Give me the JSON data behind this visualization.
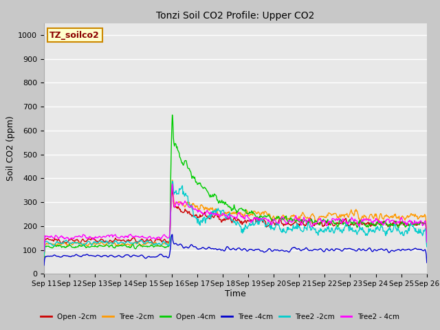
{
  "title": "Tonzi Soil CO2 Profile: Upper CO2",
  "xlabel": "Time",
  "ylabel": "Soil CO2 (ppm)",
  "ylim": [
    0,
    1050
  ],
  "yticks": [
    0,
    100,
    200,
    300,
    400,
    500,
    600,
    700,
    800,
    900,
    1000
  ],
  "fig_bg_color": "#c8c8c8",
  "plot_bg_color": "#e8e8e8",
  "grid_color": "#ffffff",
  "watermark_text": "TZ_soilco2",
  "watermark_color": "#8b0000",
  "watermark_bg": "#ffffcc",
  "watermark_edge": "#cc8800",
  "series_colors": {
    "Open -2cm": "#cc0000",
    "Tree -2cm": "#ff9900",
    "Open -4cm": "#00cc00",
    "Tree -4cm": "#0000cc",
    "Tree2 -2cm": "#00cccc",
    "Tree2 - 4cm": "#ff00ff"
  },
  "n_points": 720,
  "x_start_day": 11,
  "x_end_day": 26,
  "x_tick_days": [
    11,
    12,
    13,
    14,
    15,
    16,
    17,
    18,
    19,
    20,
    21,
    22,
    23,
    24,
    25,
    26
  ],
  "spike_day": 16.0
}
